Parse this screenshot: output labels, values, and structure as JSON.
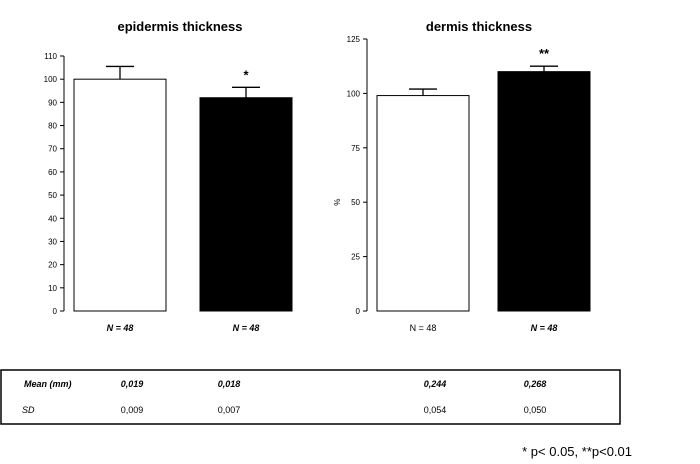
{
  "chart_data": [
    {
      "type": "bar",
      "title": "epidermis thickness",
      "ylabel": "",
      "ylim": [
        0,
        110
      ],
      "yticks": [
        0,
        10,
        20,
        30,
        40,
        50,
        60,
        70,
        80,
        90,
        100,
        110
      ],
      "categories": [
        "N = 48",
        "N = 48"
      ],
      "values": [
        100,
        92
      ],
      "errors": [
        5.5,
        4.5
      ],
      "bar_colors": [
        "#ffffff",
        "#000000"
      ],
      "annotations": [
        "",
        "*"
      ]
    },
    {
      "type": "bar",
      "title": "dermis thickness",
      "ylabel": "%",
      "ylim": [
        0,
        125
      ],
      "yticks": [
        0,
        25,
        50,
        75,
        100,
        125
      ],
      "categories": [
        "N = 48",
        "N = 48"
      ],
      "values": [
        99,
        110
      ],
      "errors": [
        3,
        2.5
      ],
      "bar_colors": [
        "#ffffff",
        "#000000"
      ],
      "annotations": [
        "",
        "**"
      ]
    }
  ],
  "table": {
    "rows": [
      {
        "label": "Mean (mm)",
        "values": [
          "0,019",
          "0,018",
          "0,244",
          "0,268"
        ]
      },
      {
        "label": "SD",
        "values": [
          "0,009",
          "0,007",
          "0,054",
          "0,050"
        ]
      }
    ]
  },
  "footnote": "* p< 0.05, **p<0.01"
}
